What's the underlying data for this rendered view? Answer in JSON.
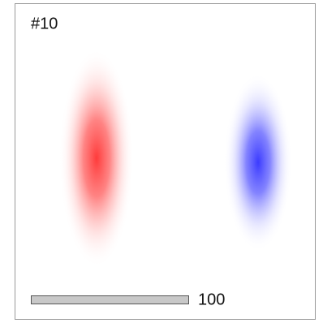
{
  "panel": {
    "label": "#10"
  },
  "scale_bar": {
    "label": "100"
  }
}
